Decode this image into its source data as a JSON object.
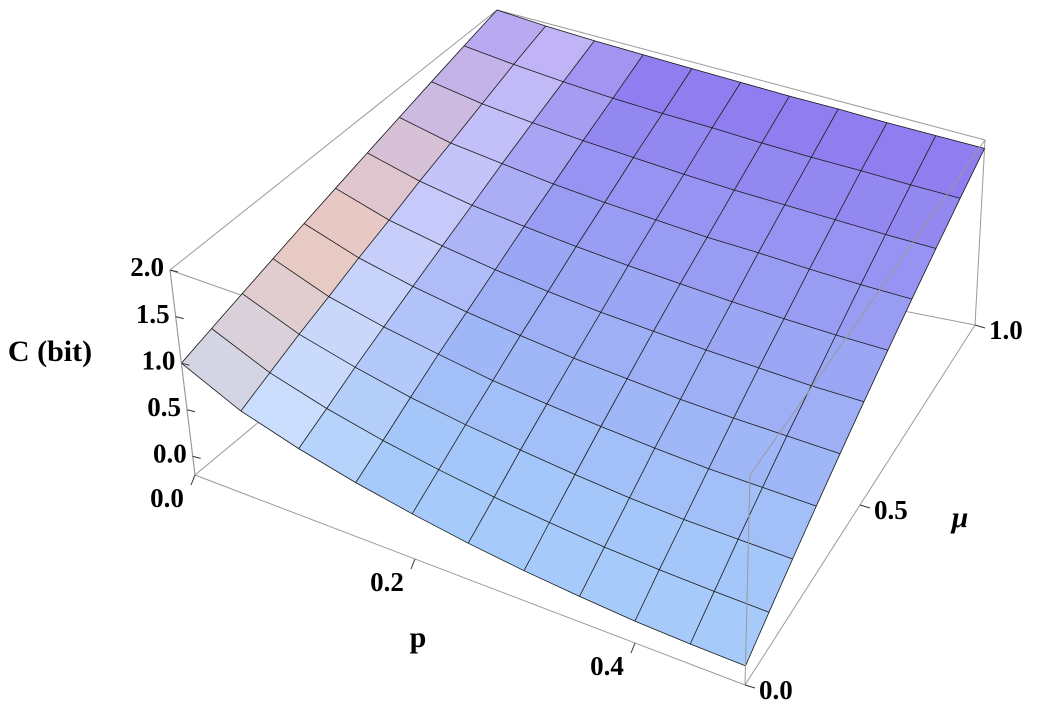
{
  "chart_data": {
    "type": "surface",
    "xlabel": "p",
    "ylabel": "μ",
    "zlabel": "C (bit)",
    "x": [
      0,
      0.05,
      0.1,
      0.15,
      0.2,
      0.25,
      0.3,
      0.35,
      0.4,
      0.45,
      0.5
    ],
    "y": [
      0,
      0.1,
      0.2,
      0.3,
      0.4,
      0.5,
      0.6,
      0.7,
      0.8,
      0.9,
      1
    ],
    "z": [
      [
        1,
        0.71,
        0.53,
        0.39,
        0.28,
        0.19,
        0.12,
        0.07,
        0.03,
        0.01,
        0
      ],
      [
        1.1,
        0.84,
        0.67,
        0.54,
        0.44,
        0.36,
        0.3,
        0.25,
        0.22,
        0.2,
        0.19
      ],
      [
        1.2,
        0.97,
        0.82,
        0.7,
        0.61,
        0.54,
        0.48,
        0.43,
        0.4,
        0.39,
        0.38
      ],
      [
        1.3,
        1.09,
        0.96,
        0.86,
        0.77,
        0.71,
        0.66,
        0.62,
        0.59,
        0.58,
        0.57
      ],
      [
        1.4,
        1.22,
        1.1,
        1.01,
        0.94,
        0.88,
        0.84,
        0.8,
        0.78,
        0.77,
        0.76
      ],
      [
        1.5,
        1.34,
        1.24,
        1.16,
        1.1,
        1.05,
        1.02,
        0.99,
        0.97,
        0.95,
        0.95
      ],
      [
        1.6,
        1.47,
        1.38,
        1.32,
        1.27,
        1.23,
        1.2,
        1.17,
        1.15,
        1.14,
        1.14
      ],
      [
        1.7,
        1.59,
        1.53,
        1.47,
        1.43,
        1.4,
        1.37,
        1.36,
        1.34,
        1.33,
        1.33
      ],
      [
        1.8,
        1.72,
        1.67,
        1.63,
        1.6,
        1.57,
        1.55,
        1.54,
        1.53,
        1.52,
        1.52
      ],
      [
        1.9,
        1.85,
        1.81,
        1.78,
        1.76,
        1.75,
        1.73,
        1.72,
        1.72,
        1.71,
        1.71
      ],
      [
        2,
        1.97,
        1.95,
        1.94,
        1.93,
        1.92,
        1.91,
        1.91,
        1.9,
        1.9,
        1.9
      ]
    ],
    "xlim": [
      0,
      0.5
    ],
    "ylim": [
      0,
      1
    ],
    "zlim": [
      -0.2,
      2.0
    ],
    "xticks": [
      {
        "value": 0,
        "label": "0.0"
      },
      0.2,
      0.4
    ],
    "yticks": [
      {
        "value": 0,
        "label": "0.0"
      },
      0.5,
      {
        "value": 1,
        "label": "1.0"
      }
    ],
    "zticks": [
      {
        "value": 0,
        "label": "0.0"
      },
      0.5,
      {
        "value": 1,
        "label": "1.0"
      },
      1.5,
      {
        "value": 2,
        "label": "2.0"
      }
    ],
    "colors": {
      "low": "#a6cdfa",
      "high": "#8f78ee",
      "warm": "#ffc9a8",
      "mesh": "#1a1a1a",
      "box": "#9a9a9a"
    }
  }
}
